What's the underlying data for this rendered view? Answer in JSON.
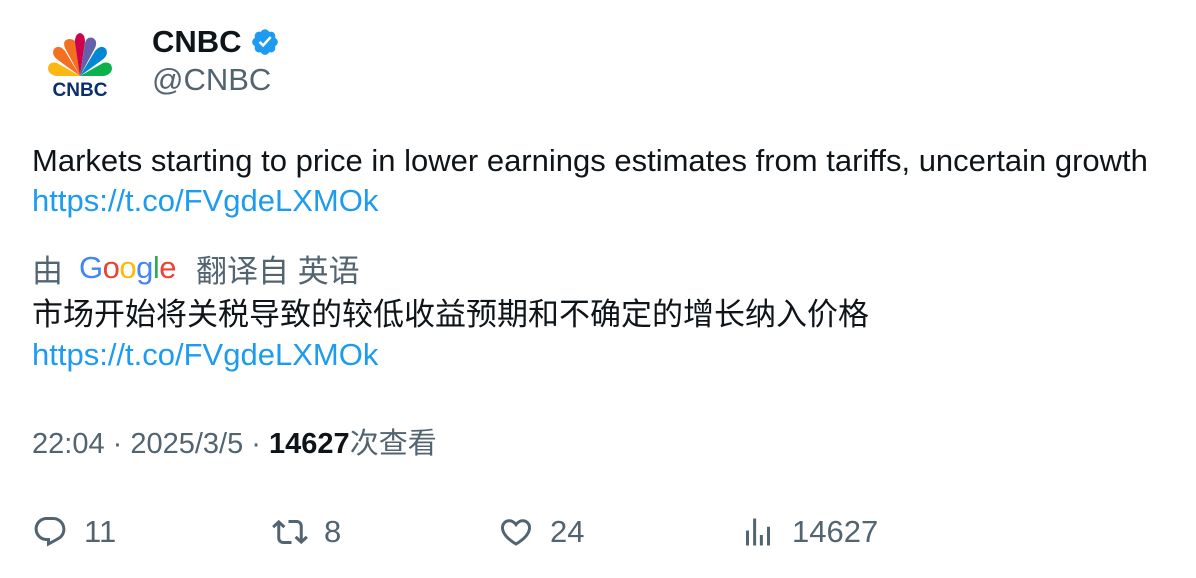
{
  "account": {
    "display_name": "CNBC",
    "handle": "@CNBC",
    "logo_text": "CNBC",
    "verified": true,
    "verified_color": "#1d9bf0"
  },
  "tweet": {
    "text": "Markets starting to price in lower earnings estimates from tariffs, uncertain growth ",
    "link": "https://t.co/FVgdeLXMOk"
  },
  "translation": {
    "prefix": "由",
    "provider_letters": [
      "G",
      "o",
      "o",
      "g",
      "l",
      "e"
    ],
    "provider_colors": [
      "#4285f4",
      "#ea4335",
      "#fbbc05",
      "#4285f4",
      "#34a853",
      "#ea4335"
    ],
    "from_label": "翻译自 英语",
    "text": "市场开始将关税导致的较低收益预期和不确定的增长纳入价格",
    "link": "https://t.co/FVgdeLXMOk"
  },
  "meta": {
    "time": "22:04",
    "separator": " · ",
    "date": "2025/3/5",
    "views_count": "14627",
    "views_label": "次查看"
  },
  "actions": {
    "replies": "11",
    "reposts": "8",
    "likes": "24",
    "views": "14627"
  },
  "colors": {
    "text": "#0f1419",
    "secondary": "#536471",
    "link": "#1d9bf0"
  }
}
